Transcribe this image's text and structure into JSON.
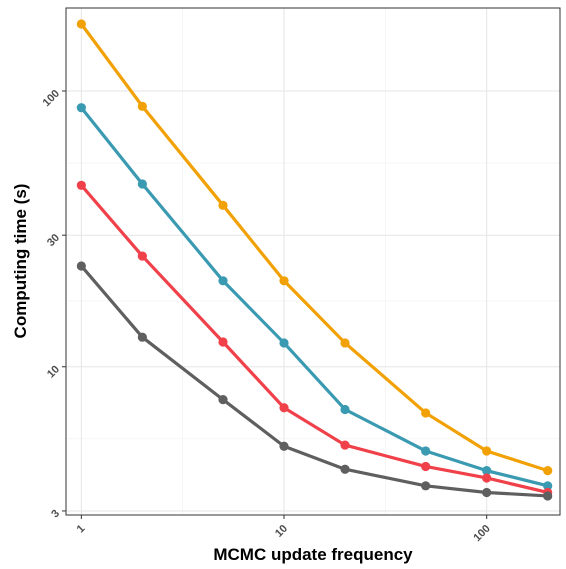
{
  "chart_data": {
    "type": "line",
    "xlabel": "MCMC update frequency",
    "ylabel": "Computing time (s)",
    "x_scale": "log10",
    "y_scale": "log10",
    "xlim": [
      0.84,
      230
    ],
    "ylim": [
      2.9,
      200
    ],
    "x_ticks": [
      1,
      10,
      100
    ],
    "x_tick_labels": [
      "1",
      "10",
      "100"
    ],
    "y_ticks": [
      3,
      10,
      30,
      100
    ],
    "y_tick_labels": [
      "3",
      "10",
      "30",
      "100"
    ],
    "x_minor_ticks": [
      3.1623,
      31.623
    ],
    "y_minor_ticks": [
      5.4772,
      17.3205,
      54.7723
    ],
    "grid": true,
    "legend": "none",
    "x": [
      1,
      2,
      5,
      10,
      20,
      50,
      100,
      200
    ],
    "series": [
      {
        "color": "#F2A104",
        "values": [
          175,
          88,
          38.5,
          20.5,
          12.2,
          6.8,
          4.95,
          4.2
        ]
      },
      {
        "color": "#3A9AB2",
        "values": [
          87,
          46,
          20.5,
          12.2,
          7.0,
          4.95,
          4.2,
          3.7
        ]
      },
      {
        "color": "#F0414A",
        "values": [
          45.5,
          25.2,
          12.3,
          7.1,
          5.2,
          4.35,
          3.95,
          3.5
        ]
      },
      {
        "color": "#5F5F5F",
        "values": [
          23.2,
          12.8,
          7.6,
          5.15,
          4.25,
          3.7,
          3.5,
          3.4
        ]
      }
    ]
  }
}
